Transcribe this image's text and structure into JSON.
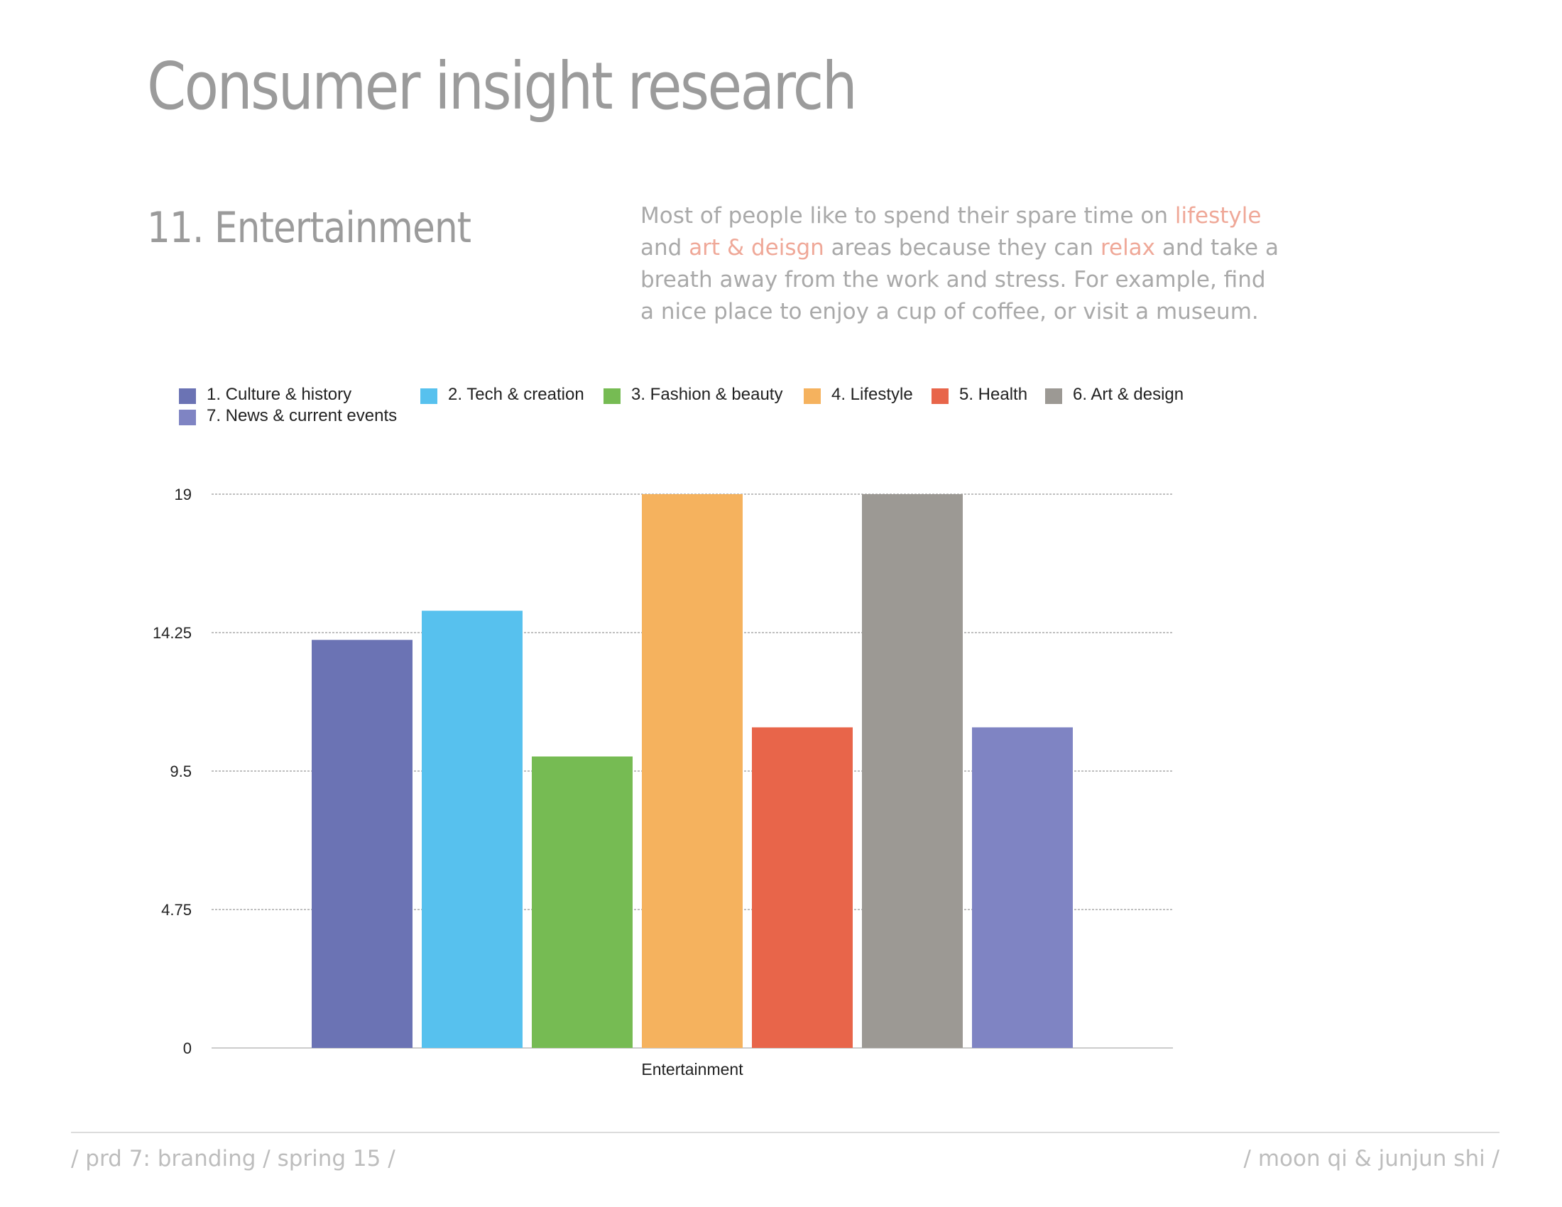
{
  "header": {
    "title": "Consumer insight research",
    "section": "11. Entertainment"
  },
  "description": {
    "segments": [
      {
        "text": "Most of people like to spend their spare time on ",
        "highlight": false
      },
      {
        "text": "lifestyle",
        "highlight": true
      },
      {
        "text": " and ",
        "highlight": false
      },
      {
        "text": "art & deisgn",
        "highlight": true
      },
      {
        "text": " areas because they can ",
        "highlight": false
      },
      {
        "text": "relax",
        "highlight": true
      },
      {
        "text": " and take a breath away from the work and stress. For example, find a nice place to enjoy a cup of coffee, or visit a museum.",
        "highlight": false
      }
    ],
    "highlight_color": "#efa898"
  },
  "chart_data": {
    "type": "bar",
    "categories": [
      "Entertainment"
    ],
    "series": [
      {
        "name": "1. Culture & history",
        "values": [
          14
        ],
        "color": "#6b73b4"
      },
      {
        "name": "2. Tech & creation",
        "values": [
          15
        ],
        "color": "#57c1ee"
      },
      {
        "name": "3. Fashion & beauty",
        "values": [
          10
        ],
        "color": "#76bb53"
      },
      {
        "name": "4. Lifestyle",
        "values": [
          19
        ],
        "color": "#f5b25e"
      },
      {
        "name": "5. Health",
        "values": [
          11
        ],
        "color": "#e8654a"
      },
      {
        "name": "6. Art & design",
        "values": [
          19
        ],
        "color": "#9c9994"
      },
      {
        "name": "7. News & current events",
        "values": [
          11
        ],
        "color": "#7f84c3"
      }
    ],
    "yticks": [
      "0",
      "4.75",
      "9.5",
      "14.25",
      "19"
    ],
    "ylim": [
      0,
      19
    ],
    "grid": true,
    "legend_position": "top"
  },
  "footer": {
    "left": "/ prd 7: branding / spring 15 /",
    "right": "/ moon qi & junjun shi /"
  }
}
